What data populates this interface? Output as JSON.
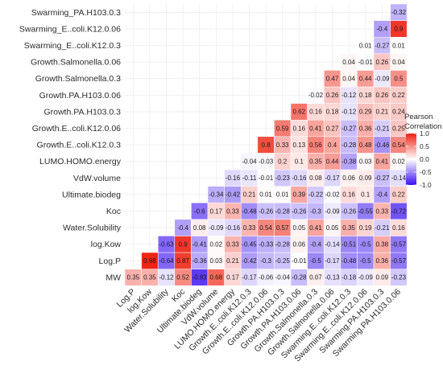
{
  "chart_data": {
    "type": "heatmap",
    "title": "",
    "xlabel": "",
    "ylabel": "",
    "variables": [
      "MW",
      "Log.P",
      "log.Kow",
      "Water.Solubility",
      "Koc",
      "Ultimate.biodeg",
      "VdW.volume",
      "LUMO.HOMO.energy",
      "Growth.E..coli.K12.0.3",
      "Growth.E..coli.K12.0.06",
      "Growth.PA.H103.0.3",
      "Growth.PA.H103.0.06",
      "Growth.Salmonella.0.3",
      "Growth.Salmonella.0.06",
      "Swarming.E..coli.K12.0.3",
      "Swarming.E..coli.K12.0.06",
      "Swarming.PA.H103.0.3"
    ],
    "row_labels": [
      "MW",
      "Log.P",
      "log.Kow",
      "Water.Solubility",
      "Koc",
      "Ultimate.biodeg",
      "VdW.volume",
      "LUMO.HOMO.energy",
      "Growth.E..coli.K12.0.3",
      "Growth.E..coli.K12.0.06",
      "Growth.PA.H103.0.3",
      "Growth.PA.H103.0.06",
      "Growth.Salmonella.0.3",
      "Growth.Salmonella.0.06",
      "Swarming_E..coli.K12.0.3",
      "Swarming_E..coli.K12.0.06",
      "Swarming_PA.H103.0.3"
    ],
    "col_labels": [
      "Log.P",
      "log.Kow",
      "Water.Solubility",
      "Koc",
      "Ultimate.biodeg",
      "VdW.volume",
      "LUMO.HOMO.energy",
      "Growth.E..coli.K12.0.3",
      "Growth.E..coli.K12.0.06",
      "Growth.PA.H103.0.3",
      "Growth.PA.H103.0.06",
      "Growth.Salmonella.0.3",
      "Growth.Salmonella.0.06",
      "Swarming.E..coli.K12.0.3",
      "Swarming.E..coli.K12.0.06",
      "Swarming.PA.H103.0.3",
      "Swarming.PA.H103.0.06"
    ],
    "values": [
      [
        0.35,
        0.35,
        -0.12,
        0.52,
        -0.83,
        0.68,
        0.17,
        -0.17,
        -0.06,
        -0.04,
        -0.28,
        0.07,
        -0.13,
        -0.18,
        -0.09,
        0.09,
        -0.23
      ],
      [
        0.98,
        -0.64,
        0.87,
        -0.36,
        0.03,
        0.21,
        -0.42,
        -0.3,
        -0.25,
        -0.01,
        -0.5,
        -0.17,
        -0.48,
        -0.5,
        0.36,
        -0.57
      ],
      [
        -0.63,
        0.9,
        -0.41,
        0.02,
        0.33,
        -0.45,
        -0.33,
        -0.28,
        0.06,
        -0.4,
        -0.14,
        -0.51,
        -0.5,
        0.38,
        -0.57
      ],
      [
        -0.4,
        0.08,
        -0.09,
        -0.16,
        0.33,
        0.54,
        0.57,
        0.05,
        0.41,
        0.05,
        0.35,
        0.19,
        -0.21,
        0.16
      ],
      [
        -0.6,
        0.17,
        0.33,
        -0.48,
        -0.26,
        -0.28,
        -0.26,
        -0.3,
        -0.09,
        -0.26,
        -0.55,
        0.33,
        -0.72
      ],
      [
        -0.34,
        -0.42,
        0.21,
        0.01,
        0.01,
        0.39,
        -0.22,
        -0.02,
        0.16,
        0.1,
        -0.4,
        0.22
      ],
      [
        -0.16,
        -0.11,
        -0.01,
        -0.23,
        -0.16,
        0.08,
        -0.17,
        0.06,
        0.09,
        -0.27,
        -0.14
      ],
      [
        -0.04,
        -0.03,
        0.2,
        0.1,
        0.35,
        0.44,
        -0.38,
        0.03,
        0.41,
        0.02
      ],
      [
        0.8,
        0.33,
        0.13,
        0.56,
        0.4,
        -0.28,
        0.48,
        -0.46,
        0.54
      ],
      [
        0.59,
        0.16,
        0.41,
        0.27,
        -0.27,
        0.36,
        -0.21,
        0.25
      ],
      [
        0.62,
        0.16,
        0.18,
        -0.12,
        0.29,
        0.21,
        0.24
      ],
      [
        -0.02,
        0.26,
        -0.12,
        0.18,
        0.26,
        0.22
      ],
      [
        0.47,
        0.04,
        0.44,
        -0.09,
        0.5
      ],
      [
        0.04,
        -0.01,
        0.26,
        0.04
      ],
      [
        0.01,
        -0.27,
        0.01
      ],
      [
        -0.4,
        0.9
      ],
      [
        -0.32
      ]
    ],
    "legend": {
      "title_lines": [
        "Pearson",
        "Correlation"
      ],
      "ticks": [
        1.0,
        0.5,
        0.0,
        -0.5,
        -1.0
      ],
      "tick_labels": [
        "1.0",
        "0.5",
        "0.0",
        "-0.5",
        "-1.0"
      ],
      "range": [
        -1,
        1
      ],
      "placement": "right"
    },
    "colors": {
      "negative": "#3b10f0",
      "zero": "#ffffff",
      "positive": "#f02010"
    }
  }
}
